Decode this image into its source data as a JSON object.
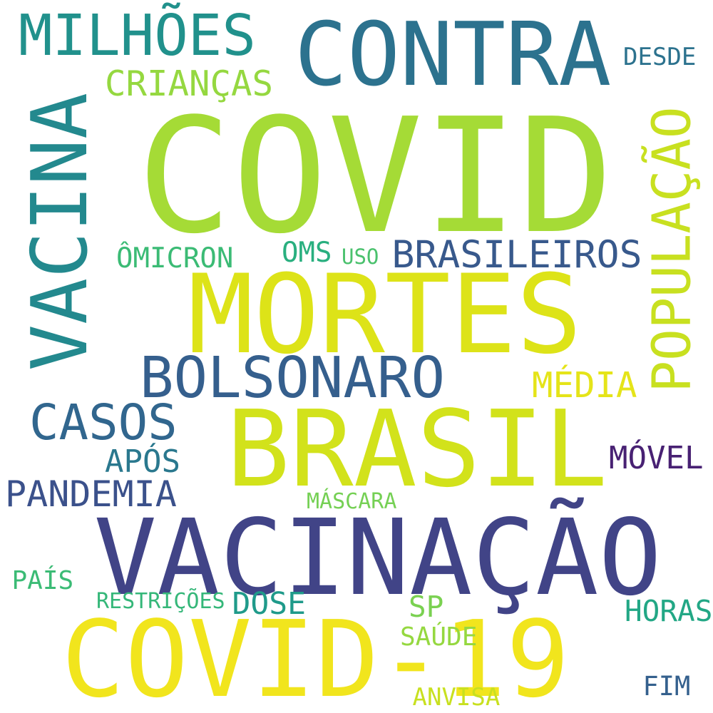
{
  "words": [
    {
      "text": "COVID",
      "color": "#a5db36",
      "orientation": "horizontal"
    },
    {
      "text": "COVID-19",
      "color": "#f1e51d",
      "orientation": "horizontal"
    },
    {
      "text": "VACINAÇÃO",
      "color": "#414487",
      "orientation": "horizontal"
    },
    {
      "text": "BRASIL",
      "color": "#d2e21b",
      "orientation": "horizontal"
    },
    {
      "text": "MORTES",
      "color": "#dde318",
      "orientation": "horizontal"
    },
    {
      "text": "VACINA",
      "color": "#23898e",
      "orientation": "vertical"
    },
    {
      "text": "CONTRA",
      "color": "#2c728e",
      "orientation": "horizontal"
    },
    {
      "text": "MILHÕES",
      "color": "#21918c",
      "orientation": "horizontal"
    },
    {
      "text": "POPULAÇÃO",
      "color": "#c8e020",
      "orientation": "vertical"
    },
    {
      "text": "BOLSONARO",
      "color": "#355f8d",
      "orientation": "horizontal"
    },
    {
      "text": "CASOS",
      "color": "#31668e",
      "orientation": "horizontal"
    },
    {
      "text": "BRASILEIROS",
      "color": "#38598c",
      "orientation": "horizontal"
    },
    {
      "text": "PANDEMIA",
      "color": "#3b518b",
      "orientation": "horizontal"
    },
    {
      "text": "CRIANÇAS",
      "color": "#95d840",
      "orientation": "horizontal"
    },
    {
      "text": "MÉDIA",
      "color": "#e5e419",
      "orientation": "horizontal"
    },
    {
      "text": "MÓVEL",
      "color": "#482173",
      "orientation": "horizontal"
    },
    {
      "text": "APÓS",
      "color": "#2a788e",
      "orientation": "horizontal"
    },
    {
      "text": "DESDE",
      "color": "#2c728e",
      "orientation": "horizontal"
    },
    {
      "text": "ÔMICRON",
      "color": "#3bbb75",
      "orientation": "horizontal"
    },
    {
      "text": "OMS",
      "color": "#29af7f",
      "orientation": "horizontal"
    },
    {
      "text": "USO",
      "color": "#4ac16d",
      "orientation": "horizontal"
    },
    {
      "text": "MÁSCARA",
      "color": "#75d054",
      "orientation": "horizontal"
    },
    {
      "text": "PAÍS",
      "color": "#3bbb75",
      "orientation": "horizontal"
    },
    {
      "text": "RESTRIÇÕES",
      "color": "#35b779",
      "orientation": "horizontal"
    },
    {
      "text": "DOSE",
      "color": "#1f9a8a",
      "orientation": "horizontal"
    },
    {
      "text": "SP",
      "color": "#7ad151",
      "orientation": "horizontal"
    },
    {
      "text": "HORAS",
      "color": "#22a785",
      "orientation": "horizontal"
    },
    {
      "text": "SAÚDE",
      "color": "#95d840",
      "orientation": "horizontal"
    },
    {
      "text": "ANVISA",
      "color": "#c8e020",
      "orientation": "horizontal"
    },
    {
      "text": "FIM",
      "color": "#34608d",
      "orientation": "horizontal"
    }
  ]
}
